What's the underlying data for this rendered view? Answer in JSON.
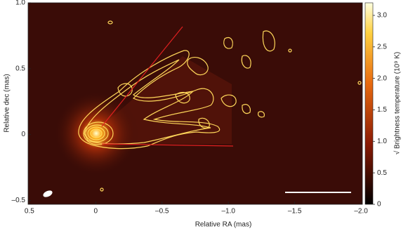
{
  "chart_data": {
    "type": "image",
    "xlabel": "Relative RA (mas)",
    "ylabel": "Relative dec (mas)",
    "xlim": [
      0.51,
      -2.01
    ],
    "ylim": [
      -0.53,
      1.0
    ],
    "xticks": [
      0.5,
      0,
      {
        "value": -0.5,
        "label": "–0.5"
      },
      {
        "value": -1.0,
        "label": "–1.0"
      },
      {
        "value": -1.5,
        "label": "–1.5"
      },
      {
        "value": -2.0,
        "label": "–2.0"
      }
    ],
    "yticks": [
      {
        "value": -0.5,
        "label": "–0.5"
      },
      0,
      0.5,
      {
        "value": 1.0,
        "label": "1.0"
      }
    ],
    "colorbar": {
      "label": "√ Brightness temperature (10⁹ K)",
      "lim": [
        0,
        3.2
      ],
      "ticks": [
        0,
        0.5,
        {
          "value": 1.0,
          "label": "1.0"
        },
        1.5,
        {
          "value": 2.0,
          "label": "2.0"
        },
        2.5,
        {
          "value": 3.0,
          "label": "3.0"
        }
      ]
    }
  }
}
